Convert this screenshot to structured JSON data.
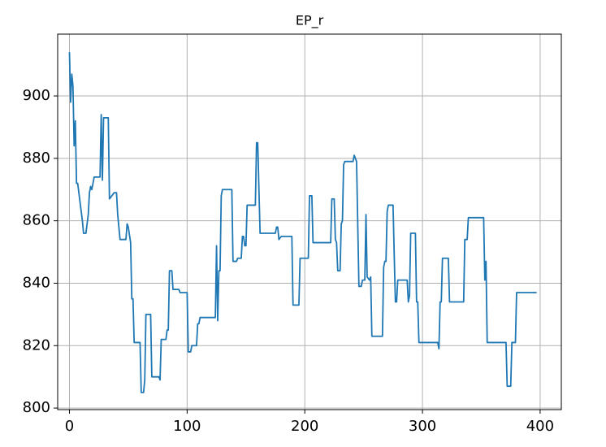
{
  "chart_data": {
    "type": "line",
    "title": "EP_r",
    "x": [
      0,
      1,
      2,
      3,
      4,
      5,
      6,
      7,
      9,
      11,
      12,
      14,
      16,
      17,
      18,
      19,
      21,
      26,
      27,
      28,
      29,
      33,
      34,
      36,
      38,
      40,
      41,
      43,
      48,
      49,
      50,
      52,
      53,
      54,
      55,
      60,
      61,
      63,
      64,
      65,
      69,
      70,
      76,
      77,
      78,
      82,
      83,
      84,
      85,
      87,
      88,
      93,
      94,
      100,
      101,
      103,
      104,
      108,
      109,
      110,
      111,
      124,
      125,
      126,
      127,
      128,
      129,
      130,
      138,
      139,
      142,
      143,
      146,
      147,
      148,
      149,
      150,
      151,
      158,
      159,
      160,
      162,
      175,
      176,
      177,
      178,
      180,
      189,
      190,
      195,
      196,
      203,
      204,
      206,
      207,
      222,
      223,
      225,
      226,
      227,
      228,
      230,
      231,
      232,
      233,
      234,
      241,
      242,
      244,
      245,
      246,
      248,
      249,
      251,
      252,
      253,
      255,
      256,
      257,
      266,
      267,
      268,
      269,
      270,
      271,
      275,
      276,
      277,
      278,
      279,
      287,
      288,
      289,
      290,
      294,
      295,
      296,
      297,
      313,
      314,
      315,
      316,
      317,
      322,
      323,
      335,
      336,
      338,
      339,
      352,
      353,
      354,
      355,
      371,
      372,
      375,
      376,
      379,
      380,
      397
    ],
    "series": [
      {
        "color": "#1f77b4",
        "values": [
          914,
          898,
          907,
          903,
          884,
          892,
          872,
          872,
          866,
          860,
          856,
          856,
          862,
          869,
          871,
          870,
          874,
          874,
          894,
          873,
          893,
          893,
          867,
          868,
          869,
          869,
          862,
          854,
          854,
          859,
          858,
          853,
          835,
          835,
          821,
          821,
          805,
          805,
          809,
          830,
          830,
          810,
          810,
          809,
          822,
          822,
          825,
          825,
          844,
          844,
          838,
          838,
          837,
          837,
          818,
          818,
          820,
          820,
          827,
          827,
          829,
          829,
          852,
          828,
          844,
          844,
          868,
          870,
          870,
          847,
          847,
          848,
          848,
          855,
          855,
          852,
          852,
          865,
          865,
          885,
          885,
          856,
          856,
          858,
          858,
          854,
          855,
          855,
          833,
          833,
          848,
          848,
          868,
          868,
          853,
          853,
          867,
          867,
          854,
          853,
          844,
          844,
          859,
          860,
          878,
          879,
          879,
          881,
          879,
          859,
          839,
          839,
          841,
          841,
          862,
          842,
          841,
          842,
          823,
          823,
          845,
          847,
          847,
          863,
          865,
          865,
          849,
          834,
          834,
          841,
          841,
          834,
          836,
          856,
          856,
          834,
          834,
          821,
          821,
          819,
          834,
          834,
          848,
          848,
          834,
          834,
          854,
          854,
          861,
          861,
          841,
          847,
          821,
          821,
          807,
          807,
          821,
          821,
          837,
          837
        ]
      }
    ],
    "xlim": [
      -10,
      418
    ],
    "ylim": [
      799.5,
      919.8
    ],
    "xticks": [
      0,
      100,
      200,
      300,
      400
    ],
    "yticks": [
      800,
      820,
      840,
      860,
      880,
      900
    ],
    "grid": true
  }
}
